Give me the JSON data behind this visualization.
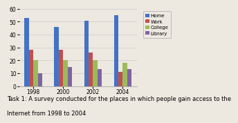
{
  "years": [
    "1998",
    "2000",
    "2002",
    "2004"
  ],
  "categories": [
    "Home",
    "Work",
    "College",
    "Library"
  ],
  "values": {
    "Home": [
      53,
      46,
      51,
      55
    ],
    "Work": [
      28,
      28,
      26,
      11
    ],
    "College": [
      20,
      20,
      20,
      18
    ],
    "Library": [
      10,
      15,
      13,
      13
    ]
  },
  "colors": {
    "Home": "#4472C4",
    "Work": "#C0504D",
    "College": "#9BBB59",
    "Library": "#8064A2"
  },
  "ylim": [
    0,
    60
  ],
  "yticks": [
    0,
    10,
    20,
    30,
    40,
    50,
    60
  ],
  "caption_line1": "Task 1: A survey conducted for the places in which people gain access to the",
  "caption_line2": "Internet from 1998 to 2004",
  "background_color": "#ede8e0",
  "legend_fontsize": 5.0,
  "bar_width": 0.15,
  "tick_fontsize": 5.5,
  "caption_fontsize": 6.0
}
